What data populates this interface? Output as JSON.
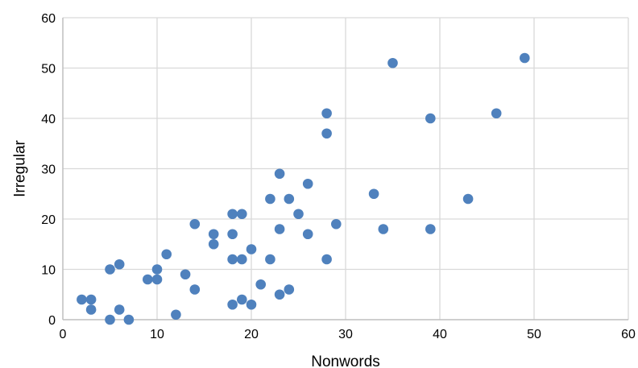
{
  "chart_data": {
    "type": "scatter",
    "xlabel": "Nonwords",
    "ylabel": "Irregular",
    "xlim": [
      0,
      60
    ],
    "ylim": [
      0,
      60
    ],
    "x_ticks": [
      "0",
      "10",
      "20",
      "30",
      "40",
      "50",
      "60"
    ],
    "y_ticks": [
      "0",
      "10",
      "20",
      "30",
      "40",
      "50",
      "60"
    ],
    "grid": true,
    "legend": "none",
    "point_color": "#4f81bd",
    "grid_color": "#d9d9d9",
    "axis_color": "#bfbfbf",
    "points": [
      [
        2,
        4
      ],
      [
        3,
        4
      ],
      [
        3,
        2
      ],
      [
        5,
        10
      ],
      [
        5,
        0
      ],
      [
        6,
        11
      ],
      [
        6,
        2
      ],
      [
        7,
        0
      ],
      [
        9,
        8
      ],
      [
        10,
        10
      ],
      [
        10,
        8
      ],
      [
        11,
        13
      ],
      [
        12,
        1
      ],
      [
        13,
        9
      ],
      [
        14,
        19
      ],
      [
        14,
        6
      ],
      [
        16,
        17
      ],
      [
        16,
        15
      ],
      [
        18,
        21
      ],
      [
        18,
        17
      ],
      [
        18,
        12
      ],
      [
        18,
        3
      ],
      [
        19,
        21
      ],
      [
        19,
        12
      ],
      [
        19,
        4
      ],
      [
        20,
        14
      ],
      [
        20,
        3
      ],
      [
        21,
        7
      ],
      [
        22,
        24
      ],
      [
        22,
        12
      ],
      [
        23,
        29
      ],
      [
        23,
        18
      ],
      [
        23,
        5
      ],
      [
        24,
        24
      ],
      [
        24,
        6
      ],
      [
        25,
        21
      ],
      [
        26,
        27
      ],
      [
        26,
        17
      ],
      [
        28,
        41
      ],
      [
        28,
        37
      ],
      [
        28,
        12
      ],
      [
        29,
        19
      ],
      [
        33,
        25
      ],
      [
        34,
        18
      ],
      [
        35,
        51
      ],
      [
        39,
        40
      ],
      [
        39,
        18
      ],
      [
        43,
        24
      ],
      [
        46,
        41
      ],
      [
        49,
        52
      ]
    ]
  }
}
